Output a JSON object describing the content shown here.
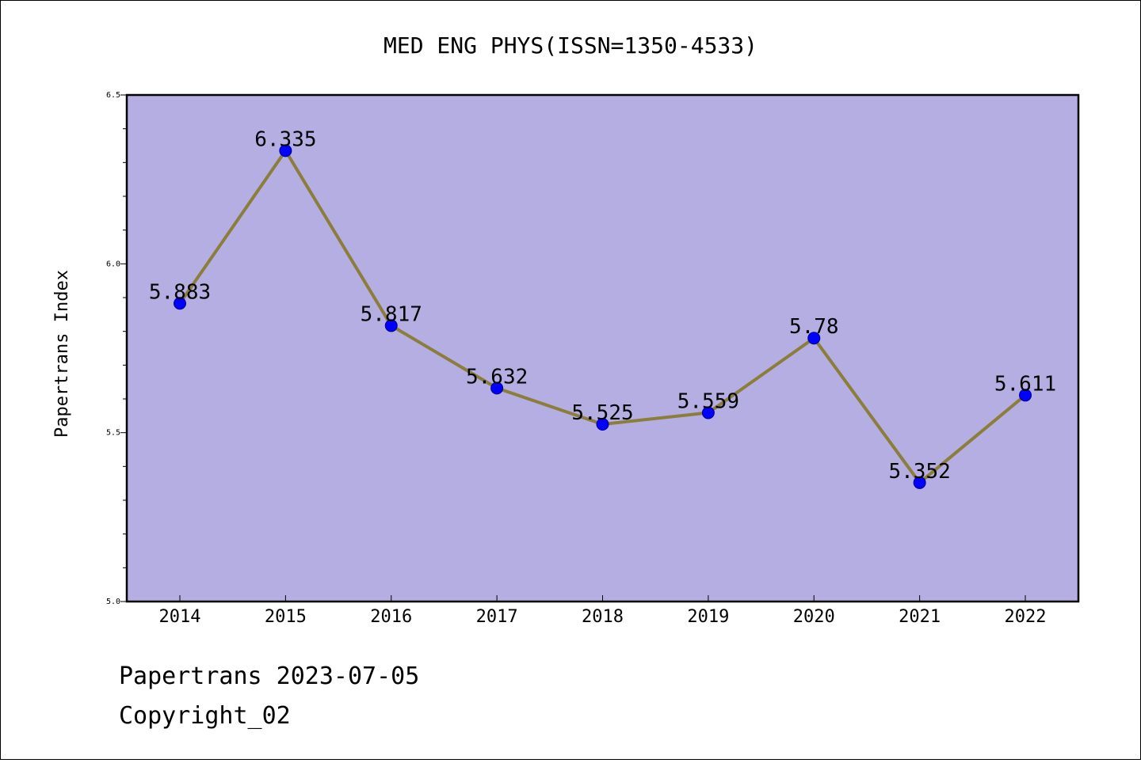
{
  "chart_data": {
    "type": "line",
    "title": "MED ENG PHYS(ISSN=1350-4533)",
    "xlabel": "",
    "ylabel": "Papertrans Index",
    "categories": [
      "2014",
      "2015",
      "2016",
      "2017",
      "2018",
      "2019",
      "2020",
      "2021",
      "2022"
    ],
    "series": [
      {
        "values": [
          5.883,
          6.335,
          5.817,
          5.632,
          5.525,
          5.559,
          5.78,
          5.352,
          5.611
        ]
      }
    ],
    "data_labels": [
      "5.883",
      "6.335",
      "5.817",
      "5.632",
      "5.525",
      "5.559",
      "5.78",
      "5.352",
      "5.611"
    ],
    "ylim": [
      5.0,
      6.5
    ],
    "yticks": [
      "5.0",
      "5.5",
      "6.0",
      "6.5"
    ],
    "grid": false,
    "colors": {
      "plot_background": "#b5aee2",
      "line": "#8b7d3a",
      "marker": "#0000ff"
    }
  },
  "footer": {
    "source": "Papertrans 2023-07-05",
    "copyright": "Copyright_02"
  }
}
